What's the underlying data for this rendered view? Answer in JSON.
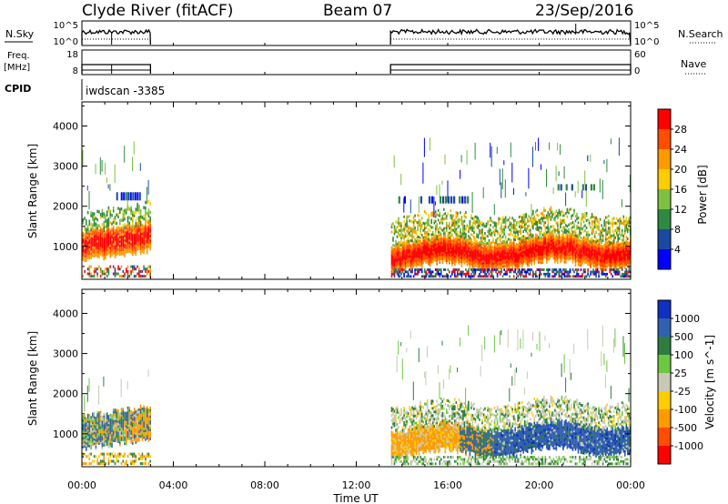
{
  "header": {
    "title": "Clyde River (fitACF)",
    "beam": "Beam 07",
    "date": "23/Sep/2016"
  },
  "cpid_label": "CPID",
  "cpid_text": "iwdscan -3385",
  "chart_data": [
    {
      "type": "line",
      "name_panel": "nsky",
      "ylabel_left": "N.Sky",
      "ylabel_right": "N.Search",
      "yticks_left": [
        "10^5",
        "10^0"
      ],
      "yticks_right": [
        "10^5",
        "10^0"
      ],
      "data_segments_hours": [
        [
          0.0,
          3.0
        ],
        [
          13.5,
          24.0
        ]
      ]
    },
    {
      "type": "line",
      "name_panel": "freq",
      "ylabel_left_lines": [
        "Freq.",
        "[MHz]"
      ],
      "ylabel_right": "Nave",
      "yticks_left": [
        "18",
        "8"
      ],
      "yticks_right": [
        "60",
        "0"
      ],
      "data_segments_hours": [
        [
          0.0,
          3.0
        ],
        [
          13.5,
          24.0
        ]
      ]
    },
    {
      "type": "heatmap",
      "name_panel": "power",
      "ylabel": "Slant Range [km]",
      "yticks": [
        1000,
        2000,
        3000,
        4000
      ],
      "ylim": [
        180,
        4600
      ],
      "colorbar_label": "Power [dB]",
      "colorbar_ticks": [
        "28",
        "24",
        "20",
        "16",
        "12",
        "8",
        "4"
      ],
      "colorbar_colors": [
        "#ff0000",
        "#ff4e00",
        "#ff9a00",
        "#ffcc00",
        "#80c040",
        "#2e8a40",
        "#1a4aa0",
        "#0000ff"
      ]
    },
    {
      "type": "heatmap",
      "name_panel": "velocity",
      "ylabel": "Slant Range [km]",
      "yticks": [
        1000,
        2000,
        3000,
        4000
      ],
      "ylim": [
        180,
        4600
      ],
      "colorbar_label": "Velocity [m s^-1]",
      "colorbar_ticks": [
        "1000",
        "500",
        "100",
        "25",
        "-25",
        "-100",
        "-500",
        "-1000"
      ],
      "colorbar_colors": [
        "#1030c0",
        "#3060b0",
        "#2e7d40",
        "#6cc840",
        "#c8c8b4",
        "#ffcc00",
        "#ff9a00",
        "#ff4e00",
        "#ff0000"
      ]
    }
  ],
  "xaxis": {
    "ticks": [
      "00:00",
      "04:00",
      "08:00",
      "12:00",
      "16:00",
      "20:00",
      "00:00"
    ],
    "tick_hours": [
      0,
      4,
      8,
      12,
      16,
      20,
      24
    ],
    "label": "Time UT"
  }
}
